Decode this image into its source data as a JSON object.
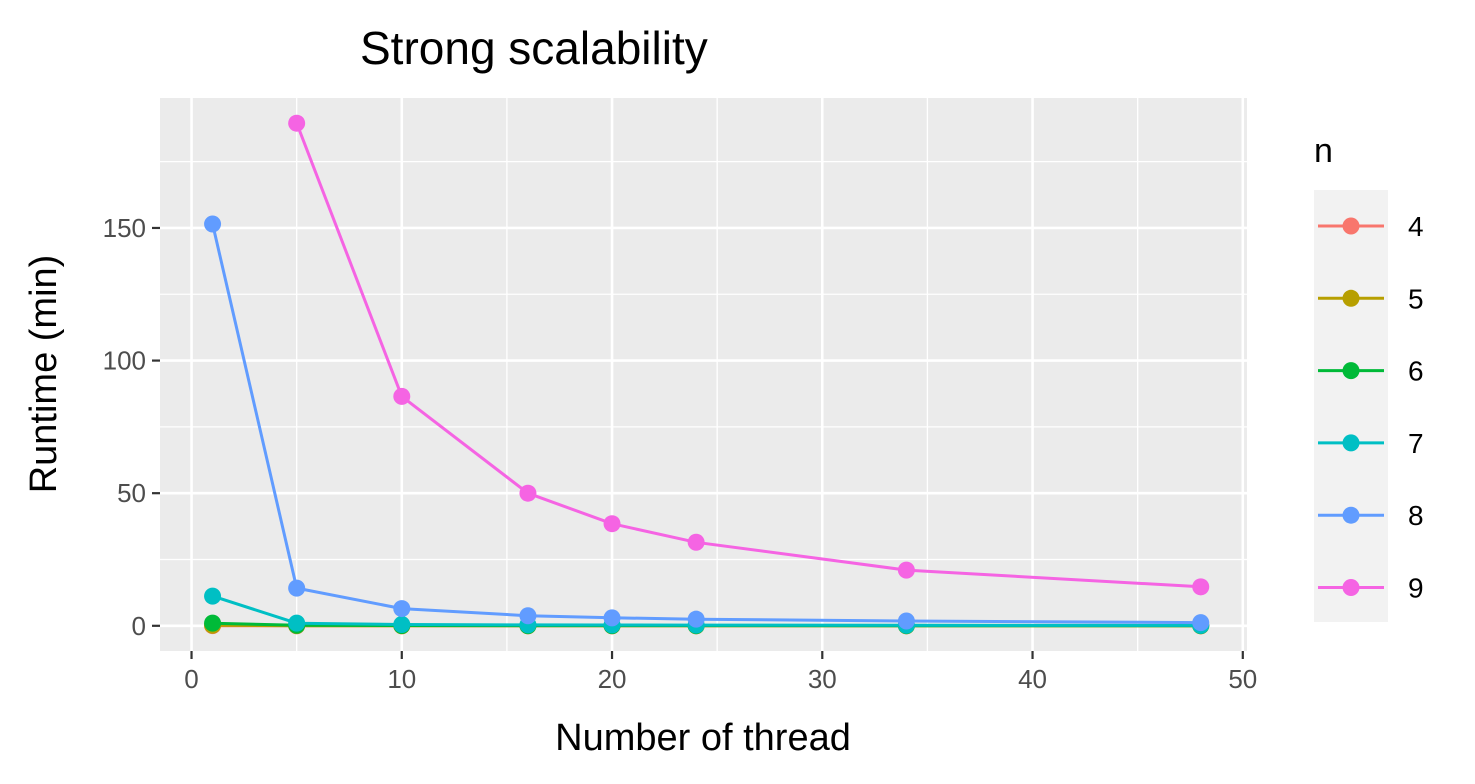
{
  "chart_data": {
    "type": "line",
    "title": "Strong scalability",
    "xlabel": "Number of thread",
    "ylabel": "Runtime (min)",
    "xlim": [
      -1.5,
      50.2
    ],
    "ylim": [
      -9.5,
      199
    ],
    "x_ticks": [
      0,
      10,
      20,
      30,
      40,
      50
    ],
    "y_ticks": [
      0,
      50,
      100,
      150
    ],
    "grid": true,
    "legend": {
      "title": "n",
      "placement": "right"
    },
    "series": [
      {
        "name": "4",
        "color": "#F8766D",
        "points": [
          [
            1,
            0.05
          ],
          [
            5,
            0.02
          ],
          [
            10,
            0.01
          ],
          [
            16,
            0.01
          ],
          [
            20,
            0.01
          ],
          [
            24,
            0.01
          ],
          [
            34,
            0.01
          ],
          [
            48,
            0.01
          ]
        ]
      },
      {
        "name": "5",
        "color": "#B79F00",
        "points": [
          [
            1,
            0.2
          ],
          [
            5,
            0.05
          ],
          [
            10,
            0.03
          ],
          [
            16,
            0.02
          ],
          [
            20,
            0.02
          ],
          [
            24,
            0.02
          ],
          [
            34,
            0.02
          ],
          [
            48,
            0.02
          ]
        ]
      },
      {
        "name": "6",
        "color": "#00BA38",
        "points": [
          [
            1,
            1.0
          ],
          [
            5,
            0.2
          ],
          [
            10,
            0.1
          ],
          [
            16,
            0.08
          ],
          [
            20,
            0.07
          ],
          [
            24,
            0.06
          ],
          [
            34,
            0.05
          ],
          [
            48,
            0.05
          ]
        ]
      },
      {
        "name": "7",
        "color": "#00BFC4",
        "points": [
          [
            1,
            11.2
          ],
          [
            5,
            1.0
          ],
          [
            10,
            0.5
          ],
          [
            16,
            0.35
          ],
          [
            20,
            0.3
          ],
          [
            24,
            0.25
          ],
          [
            34,
            0.2
          ],
          [
            48,
            0.15
          ]
        ]
      },
      {
        "name": "8",
        "color": "#619CFF",
        "points": [
          [
            1,
            151.5
          ],
          [
            5,
            14.2
          ],
          [
            10,
            6.5
          ],
          [
            16,
            3.8
          ],
          [
            20,
            3.0
          ],
          [
            24,
            2.5
          ],
          [
            34,
            1.8
          ],
          [
            48,
            1.2
          ]
        ]
      },
      {
        "name": "9",
        "color": "#F564E3",
        "points": [
          [
            5,
            189.5
          ],
          [
            10,
            86.5
          ],
          [
            16,
            50.0
          ],
          [
            20,
            38.5
          ],
          [
            24,
            31.5
          ],
          [
            34,
            21.0
          ],
          [
            48,
            14.7
          ]
        ]
      }
    ]
  }
}
